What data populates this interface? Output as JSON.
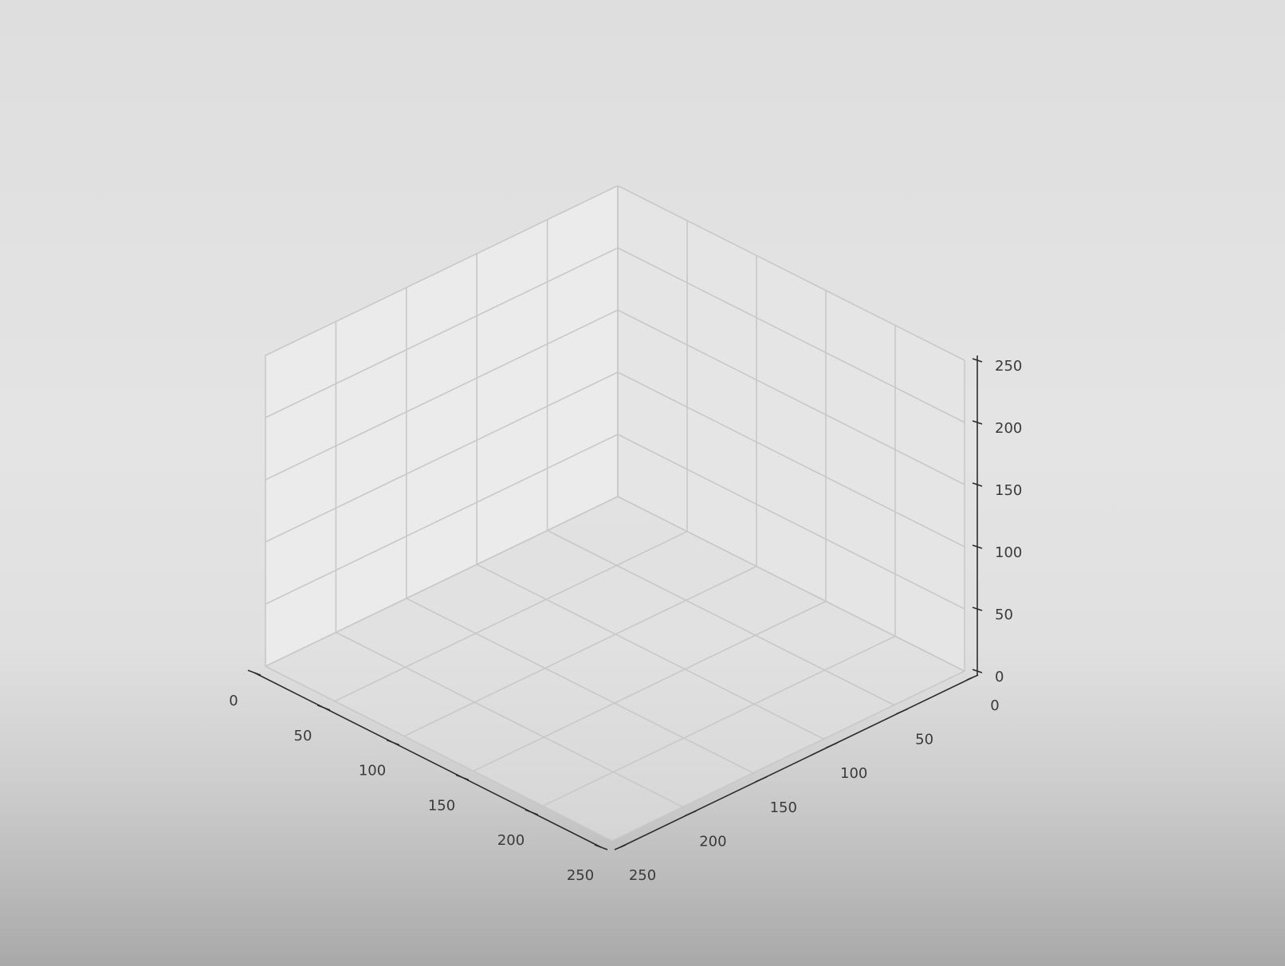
{
  "chart_data": {
    "type": "scatter",
    "projection": "3d",
    "title": "",
    "xlabel": "",
    "ylabel": "",
    "zlabel": "",
    "xlim": [
      0,
      250
    ],
    "ylim": [
      0,
      250
    ],
    "zlim": [
      0,
      250
    ],
    "x_ticks": [
      "0",
      "50",
      "100",
      "150",
      "200",
      "250"
    ],
    "y_ticks": [
      "0",
      "50",
      "100",
      "150",
      "200",
      "250"
    ],
    "z_ticks": [
      "0",
      "50",
      "100",
      "150",
      "200",
      "250"
    ],
    "grid": true,
    "series": [],
    "pane_colors": {
      "left": "#ebebeb",
      "right": "#e5e5e5",
      "floor": "#e1e1e1"
    },
    "grid_color": "#c8c8c8",
    "axis_color": "#2b2b2b"
  }
}
